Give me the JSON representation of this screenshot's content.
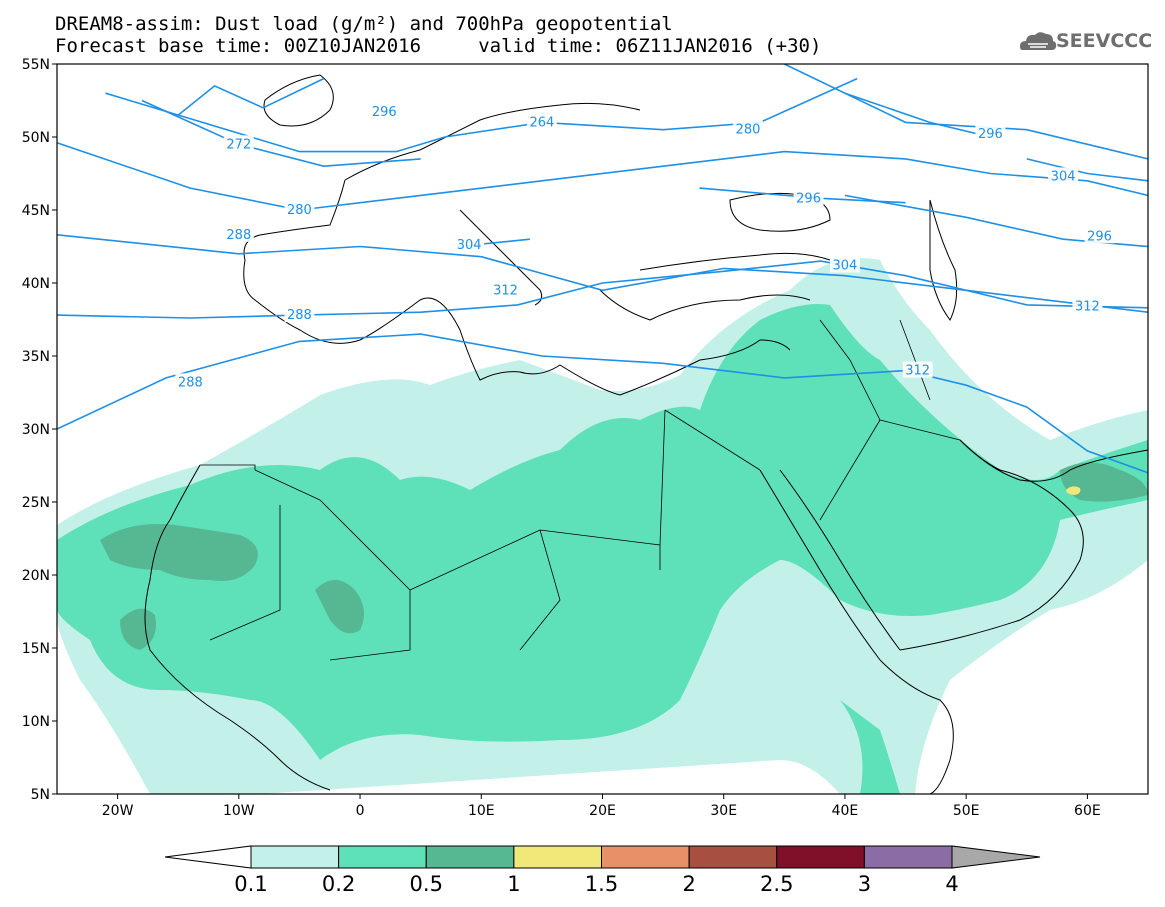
{
  "title": {
    "line1": "DREAM8-assim: Dust load (g/m²) and 700hPa geopotential",
    "line2": "Forecast base time: 00Z10JAN2016     valid time: 06Z11JAN2016 (+30)"
  },
  "logo": {
    "text": "SEEVCCC",
    "icon": "cloud-icon"
  },
  "map": {
    "lon_range": [
      -25,
      65
    ],
    "lat_range": [
      5,
      55
    ],
    "lat_ticks": [
      "55N",
      "50N",
      "45N",
      "40N",
      "35N",
      "30N",
      "25N",
      "20N",
      "15N",
      "10N",
      "5N"
    ],
    "lon_ticks": [
      "20W",
      "10W",
      "0",
      "10E",
      "20E",
      "30E",
      "40E",
      "50E",
      "60E"
    ],
    "contour_color": "#1e90e6",
    "contour_labels": [
      "264",
      "272",
      "280",
      "280",
      "288",
      "288",
      "288",
      "296",
      "296",
      "296",
      "296",
      "304",
      "304",
      "304",
      "312",
      "312",
      "312"
    ]
  },
  "colorbar": {
    "tick_labels": [
      "0.1",
      "0.2",
      "0.5",
      "1",
      "1.5",
      "2",
      "2.5",
      "3",
      "4"
    ],
    "colors": [
      "#c4f0ea",
      "#5ee0b9",
      "#56b892",
      "#f0e878",
      "#e89068",
      "#a85040",
      "#80102a",
      "#8c6ca4"
    ],
    "under_color": "#ffffff",
    "over_color": "#a8a8a8"
  }
}
